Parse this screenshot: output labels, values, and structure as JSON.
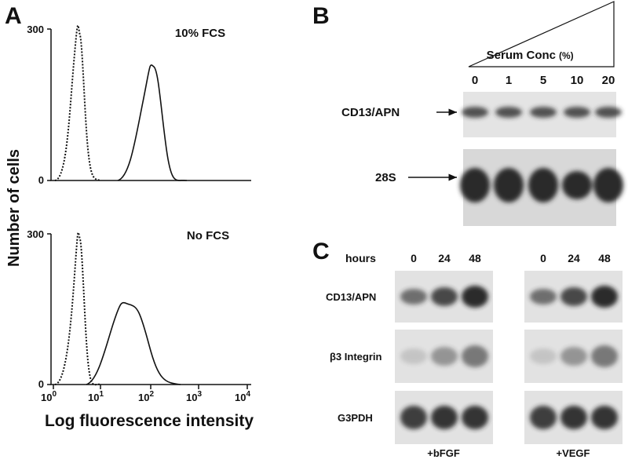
{
  "panel_a": {
    "label": "A",
    "y_axis_title": "Number of cells",
    "x_axis_title": "Log fluorescence intensity",
    "plots": [
      {
        "condition": "10% FCS",
        "y_top": "300",
        "y_bottom": "0"
      },
      {
        "condition": "No FCS",
        "y_top": "300",
        "y_bottom": "0"
      }
    ],
    "x_ticks": [
      {
        "base": "10",
        "exp": "0"
      },
      {
        "base": "10",
        "exp": "1"
      },
      {
        "base": "10",
        "exp": "2"
      },
      {
        "base": "10",
        "exp": "3"
      },
      {
        "base": "10",
        "exp": "4"
      }
    ]
  },
  "panel_b": {
    "label": "B",
    "gradient_label": "Serum Conc",
    "gradient_unit": "(%)",
    "lanes": [
      "0",
      "1",
      "5",
      "10",
      "20"
    ],
    "rows": [
      "CD13/APN",
      "28S"
    ]
  },
  "panel_c": {
    "label": "C",
    "time_label": "hours",
    "lanes": [
      "0",
      "24",
      "48"
    ],
    "rows": [
      "CD13/APN",
      "β3 Integrin",
      "G3PDH"
    ],
    "groups": [
      "+bFGF",
      "+VEGF"
    ]
  }
}
